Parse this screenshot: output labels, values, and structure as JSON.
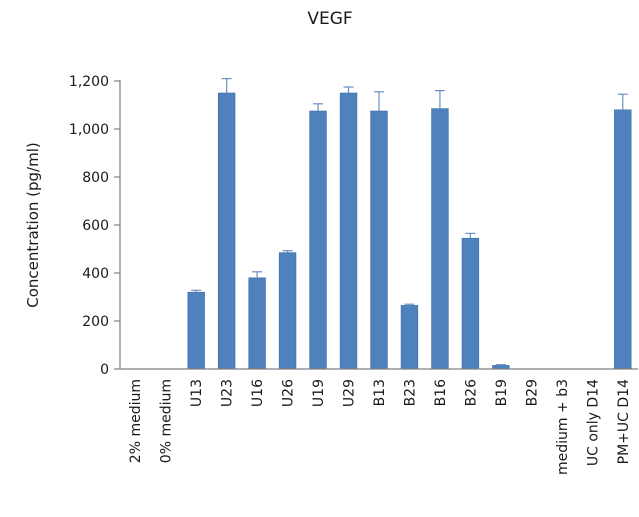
{
  "chart_data": {
    "type": "bar",
    "title": "VEGF",
    "ylabel": "Concentration (pg/ml)",
    "xlabel": "",
    "ylim": [
      0,
      1200
    ],
    "yticks": [
      0,
      200,
      400,
      600,
      800,
      1000,
      1200
    ],
    "ytick_labels": [
      "0",
      "200",
      "400",
      "600",
      "800",
      "1,000",
      "1,200"
    ],
    "grid": false,
    "legend": "none",
    "bar_color": "#4f81bd",
    "categories": [
      "2% medium",
      "0% medium",
      "U13",
      "U23",
      "U16",
      "U26",
      "U19",
      "U29",
      "B13",
      "B23",
      "B16",
      "B26",
      "B19",
      "B29",
      "medium + b3",
      "UC only D14",
      "PM+UC D14"
    ],
    "values": [
      0,
      0,
      320,
      1150,
      380,
      485,
      1075,
      1150,
      1075,
      265,
      1085,
      545,
      15,
      0,
      0,
      0,
      1080
    ],
    "errors": [
      0,
      0,
      8,
      60,
      25,
      8,
      30,
      25,
      80,
      5,
      75,
      20,
      3,
      0,
      0,
      0,
      65
    ]
  }
}
